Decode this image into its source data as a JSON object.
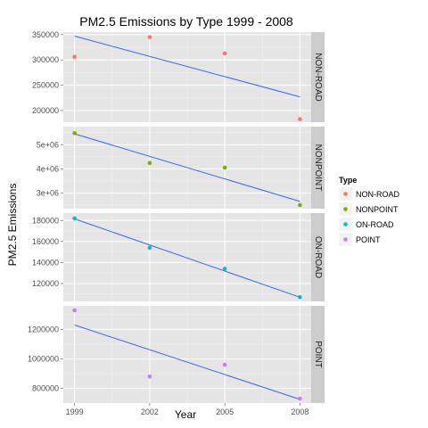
{
  "chart_data": {
    "type": "scatter",
    "title": "PM2.5 Emissions by Type 1999 - 2008",
    "xlabel": "Year",
    "ylabel": "PM2.5 Emissions",
    "x_ticks": [
      1999,
      2002,
      2005,
      2008
    ],
    "xlim": [
      1998.55,
      2008.45
    ],
    "grid": true,
    "legend": {
      "title": "Type",
      "position": "right",
      "entries": [
        "NON-ROAD",
        "NONPOINT",
        "ON-ROAD",
        "POINT"
      ]
    },
    "panels": [
      {
        "name": "NON-ROAD",
        "color": "#F8766D",
        "ylim": [
          177000,
          355000
        ],
        "y_ticks": [
          200000,
          250000,
          300000,
          350000
        ],
        "y_tick_labels": [
          "200000",
          "250000",
          "300000",
          "350000"
        ],
        "x": [
          1999,
          2002,
          2005,
          2008
        ],
        "values": [
          306000,
          345000,
          313000,
          183000
        ],
        "trend": [
          347000,
          227000
        ]
      },
      {
        "name": "NONPOINT",
        "color": "#7CAE00",
        "ylim": [
          2350000,
          5750000
        ],
        "y_ticks": [
          3000000,
          4000000,
          5000000
        ],
        "y_tick_labels": [
          "3e+06",
          "4e+06",
          "5e+06"
        ],
        "x": [
          1999,
          2002,
          2005,
          2008
        ],
        "values": [
          5480000,
          4240000,
          4050000,
          2500000
        ],
        "trend": [
          5450000,
          2650000
        ]
      },
      {
        "name": "ON-ROAD",
        "color": "#00BFC4",
        "ylim": [
          103000,
          187000
        ],
        "y_ticks": [
          120000,
          140000,
          160000,
          180000
        ],
        "y_tick_labels": [
          "120000",
          "140000",
          "160000",
          "180000"
        ],
        "x": [
          1999,
          2002,
          2005,
          2008
        ],
        "values": [
          182000,
          154000,
          134000,
          107000
        ],
        "trend": [
          181500,
          107000
        ]
      },
      {
        "name": "POINT",
        "color": "#C77CFF",
        "ylim": [
          700000,
          1360000
        ],
        "y_ticks": [
          800000,
          1000000,
          1200000
        ],
        "y_tick_labels": [
          "800000",
          "1000000",
          "1200000"
        ],
        "x": [
          1999,
          2002,
          2005,
          2008
        ],
        "values": [
          1330000,
          880000,
          960000,
          730000
        ],
        "trend": [
          1230000,
          725000
        ]
      }
    ]
  }
}
